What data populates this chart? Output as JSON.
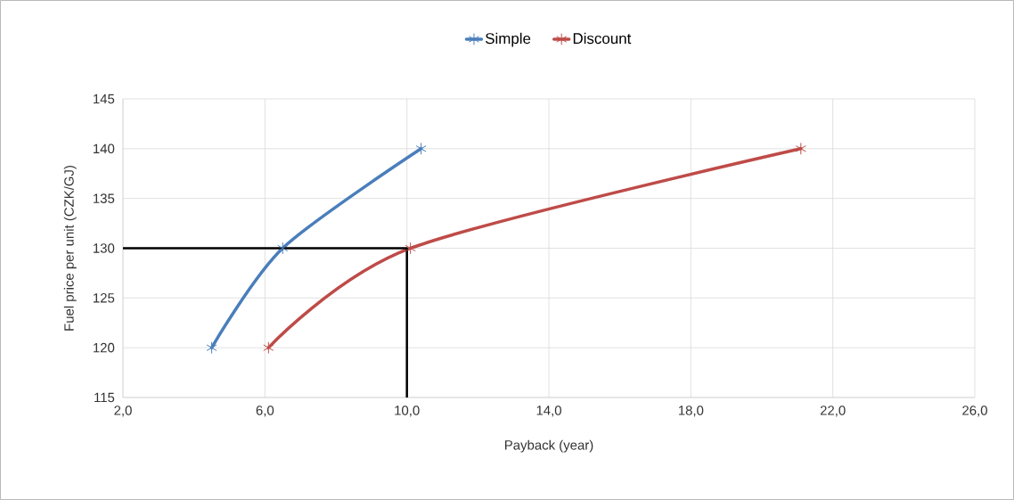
{
  "chart_data": {
    "type": "line",
    "xlabel": "Payback (year)",
    "ylabel": "Fuel price per unit (CZK/GJ)",
    "xlim": [
      2,
      26
    ],
    "ylim": [
      115,
      145
    ],
    "xticks": [
      {
        "value": 2,
        "label": "2,0"
      },
      {
        "value": 6,
        "label": "6,0"
      },
      {
        "value": 10,
        "label": "10,0"
      },
      {
        "value": 14,
        "label": "14,0"
      },
      {
        "value": 18,
        "label": "18,0"
      },
      {
        "value": 22,
        "label": "22,0"
      },
      {
        "value": 26,
        "label": "26,0"
      }
    ],
    "yticks": [
      115,
      120,
      125,
      130,
      135,
      140,
      145
    ],
    "grid": true,
    "legend": "top",
    "marker": "cross",
    "series": [
      {
        "name": "Simple",
        "color": "#4a7ebb",
        "x": [
          4.5,
          6.5,
          10.4
        ],
        "values": [
          120,
          130,
          140
        ]
      },
      {
        "name": "Discount",
        "color": "#be4b48",
        "x": [
          6.1,
          10.1,
          21.1
        ],
        "values": [
          120,
          130,
          140
        ]
      },
      {
        "color": "#000000",
        "marker": "none",
        "x": [
          2,
          10,
          10
        ],
        "values": [
          130,
          130,
          115
        ]
      }
    ]
  }
}
